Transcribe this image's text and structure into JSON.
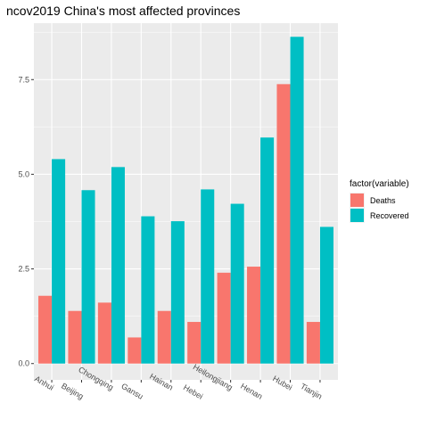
{
  "chart_data": {
    "type": "bar",
    "title": "ncov2019 China's most affected provinces",
    "xlabel": "",
    "ylabel": "",
    "categories": [
      "Anhui",
      "Beijing",
      "Chongqing",
      "Gansu",
      "Hainan",
      "Hebei",
      "Heilongjiang",
      "Henan",
      "Hubei",
      "Tianjin"
    ],
    "series": [
      {
        "name": "Deaths",
        "color": "#F8766D",
        "values": [
          1.79,
          1.39,
          1.61,
          0.69,
          1.39,
          1.1,
          2.4,
          2.56,
          7.38,
          1.1
        ]
      },
      {
        "name": "Recovered",
        "color": "#00BFC4",
        "values": [
          5.4,
          4.58,
          5.19,
          3.89,
          3.76,
          4.6,
          4.22,
          5.97,
          8.63,
          3.61
        ]
      }
    ],
    "ylim": [
      -0.43,
      8.99
    ],
    "yticks": [
      0.0,
      2.5,
      5.0,
      7.5
    ],
    "ytick_labels": [
      "0.0",
      "2.5",
      "5.0",
      "7.5"
    ],
    "grid": true,
    "legend": {
      "title": "factor(variable)",
      "position": "right"
    }
  }
}
